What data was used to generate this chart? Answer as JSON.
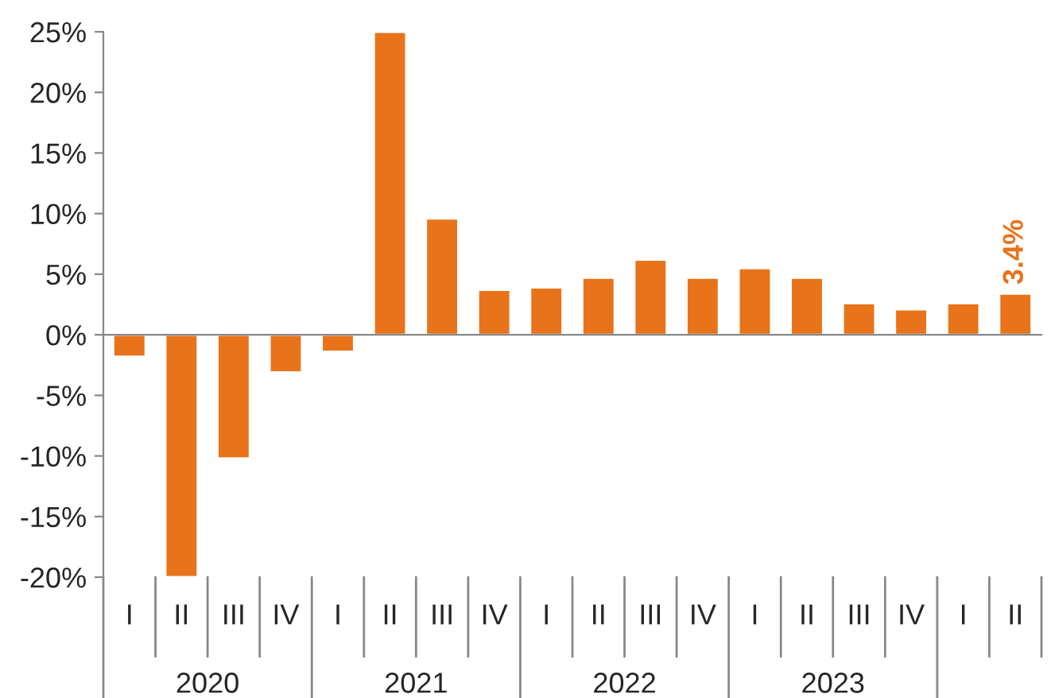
{
  "chart_data": {
    "type": "bar",
    "categories": [
      "I",
      "II",
      "III",
      "IV",
      "I",
      "II",
      "III",
      "IV",
      "I",
      "II",
      "III",
      "IV",
      "I",
      "II",
      "III",
      "IV",
      "I",
      "II"
    ],
    "values": [
      -1.8,
      -20,
      -10.2,
      -3.1,
      -1.4,
      25,
      9.6,
      3.7,
      3.9,
      4.7,
      6.2,
      4.7,
      5.5,
      4.7,
      2.6,
      2.1,
      2.6,
      3.4
    ],
    "color": "#e8731a",
    "value_labels": [
      null,
      null,
      null,
      null,
      null,
      null,
      null,
      null,
      null,
      null,
      null,
      null,
      null,
      null,
      null,
      null,
      null,
      "3.4%"
    ],
    "annotations": [
      "2020",
      "2021",
      "2022",
      "2023"
    ],
    "ylim": [
      -20,
      25
    ],
    "yticks": [
      {
        "value": 25,
        "label": "25%"
      },
      {
        "value": 20,
        "label": "20%"
      },
      {
        "value": 15,
        "label": "15%"
      },
      {
        "value": 10,
        "label": "10%"
      },
      {
        "value": 5,
        "label": "5%"
      },
      {
        "value": 0,
        "label": "0%"
      },
      {
        "value": -5,
        "label": "-5%"
      },
      {
        "value": -10,
        "label": "-10%"
      },
      {
        "value": -15,
        "label": "-15%"
      },
      {
        "value": -20,
        "label": "-20%"
      }
    ]
  }
}
